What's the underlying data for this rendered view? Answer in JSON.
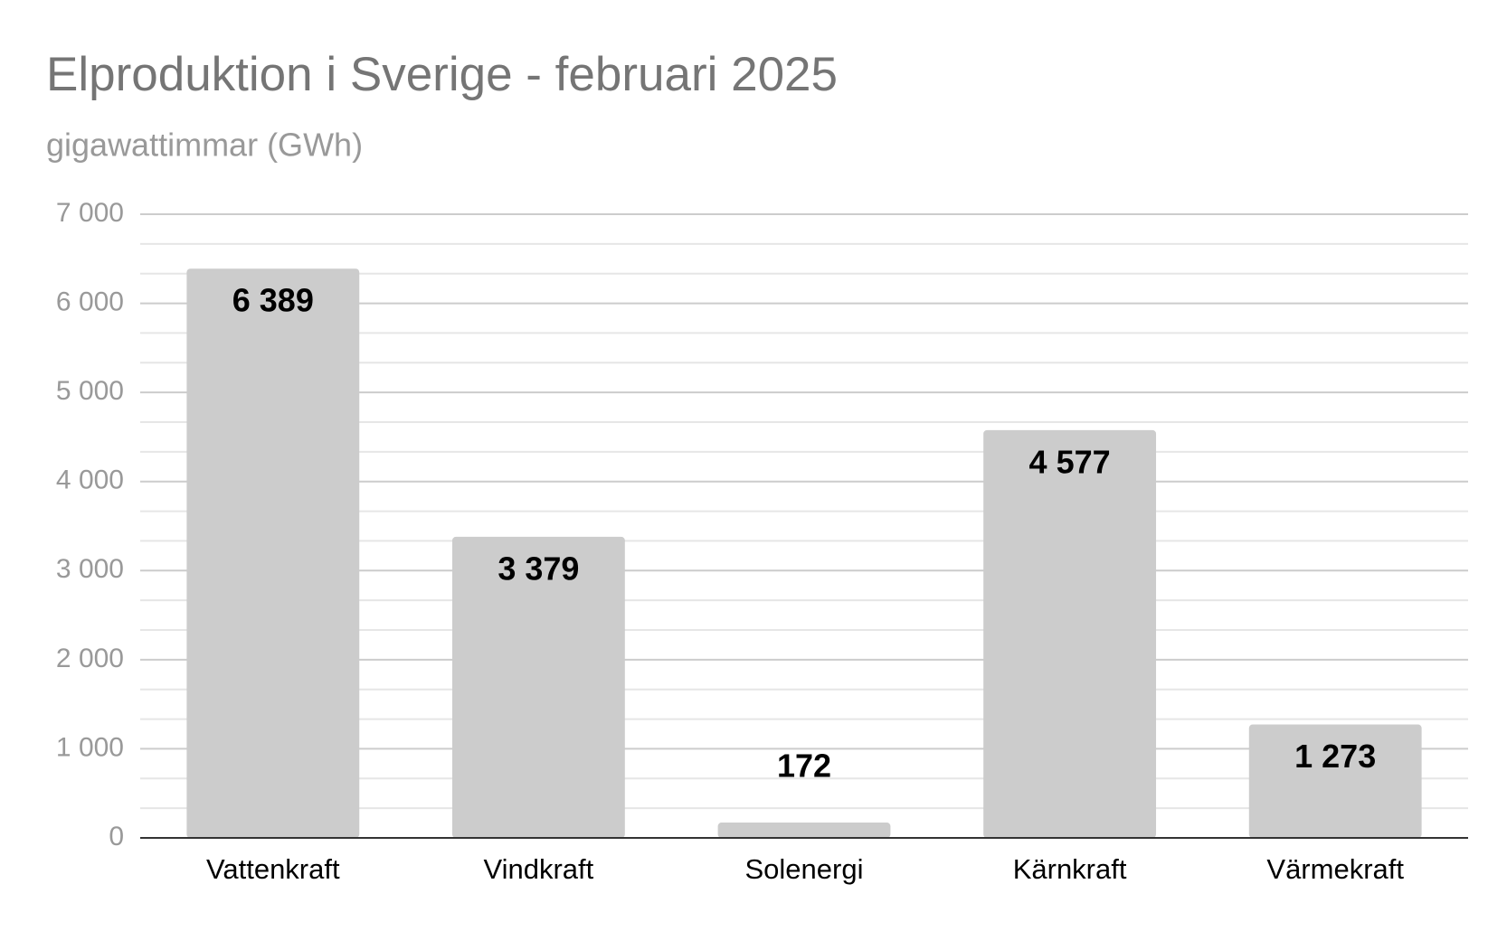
{
  "chart_data": {
    "type": "bar",
    "title": "Elproduktion i Sverige - februari 2025",
    "subtitle": "gigawattimmar (GWh)",
    "categories": [
      "Vattenkraft",
      "Vindkraft",
      "Solenergi",
      "Kärnkraft",
      "Värmekraft"
    ],
    "values": [
      6389,
      3379,
      172,
      4577,
      1273
    ],
    "value_labels": [
      "6 389",
      "3 379",
      "172",
      "4 577",
      "1 273"
    ],
    "color": "#cccccc",
    "ylim": [
      0,
      7000
    ],
    "yticks": [
      0,
      {
        "value": 1000,
        "label": "1 000"
      },
      {
        "value": 2000,
        "label": "2 000"
      },
      {
        "value": 3000,
        "label": "3 000"
      },
      {
        "value": 4000,
        "label": "4 000"
      },
      {
        "value": 5000,
        "label": "5 000"
      },
      {
        "value": 6000,
        "label": "6 000"
      },
      {
        "value": 7000,
        "label": "7 000"
      }
    ],
    "grid": true,
    "minor_grid": 3
  }
}
